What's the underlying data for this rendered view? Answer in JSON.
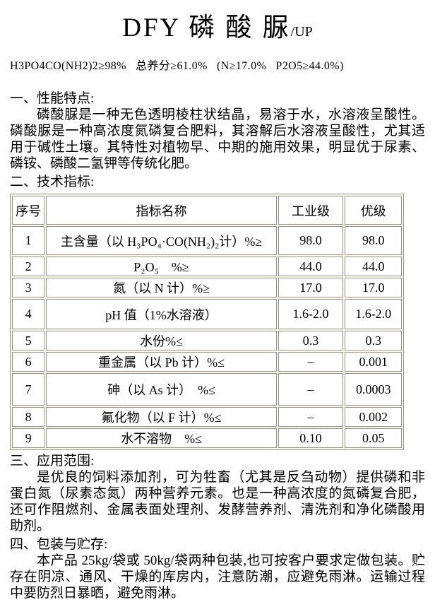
{
  "title": {
    "main": "DFY 磷 酸 脲",
    "suffix": "/UP"
  },
  "spec_line": "H3PO4CO(NH2)2≥98%   总养分≥61.0%   (N≥17.0%   P2O5≥44.0%)",
  "sections": {
    "performance": {
      "heading": "一、性能特点:",
      "body": "磷酸脲是一种无色透明棱柱状结晶，易溶于水，水溶液呈酸性。磷酸脲是一种高浓度氮磷复合肥料，其溶解后水溶液呈酸性，尤其适用于碱性土壤。其特性对植物早、中期的施用效果，明显优于尿素、磷铵、磷酸二氢钾等传统化肥。"
    },
    "tech": {
      "heading": "二、技术指标:"
    },
    "application": {
      "heading": "三、应用范围:",
      "body": "是优良的饲料添加剂，可为牲畜（尤其是反刍动物）提供磷和非蛋白氮（尿素态氮）两种营养元素。也是一种高浓度的氮磷复合肥，还可作阻燃剂、金属表面处理剂、发酵营养剂、清洗剂和净化磷酸用助剂。"
    },
    "packaging": {
      "heading": "四、包装与贮存:",
      "body": "本产品 25kg/袋或 50kg/袋两种包装,也可按客户要求定做包装。贮存在阴凉、通风、干燥的库房内，注意防潮，应避免雨淋。运输过程中要防烈日暴晒，避免雨淋。"
    }
  },
  "table": {
    "headers": [
      "序号",
      "指标名称",
      "工业级",
      "优级"
    ],
    "rows": [
      [
        "1",
        "主含量（以 H₃PO₄·CO(NH₂)₂计）%≥",
        "98.0",
        "98.0"
      ],
      [
        "2",
        "P₂O₅　%≥",
        "44.0",
        "44.0"
      ],
      [
        "3",
        "氮（以 N 计）%≥",
        "17.0",
        "17.0"
      ],
      [
        "4",
        "pH 值（1%水溶液）",
        "1.6-2.0",
        "1.6-2.0"
      ],
      [
        "5",
        "水份%≤",
        "0.3",
        "0.3"
      ],
      [
        "6",
        "重金属（以 Pb 计）%≤",
        "–",
        "0.001"
      ],
      [
        "7",
        "砷（以 As 计）　%≤",
        "–",
        "0.0003"
      ],
      [
        "8",
        "氟化物（以 F 计）%≤",
        "–",
        "0.002"
      ],
      [
        "9",
        "水不溶物　%≤",
        "0.10",
        "0.05"
      ]
    ]
  }
}
